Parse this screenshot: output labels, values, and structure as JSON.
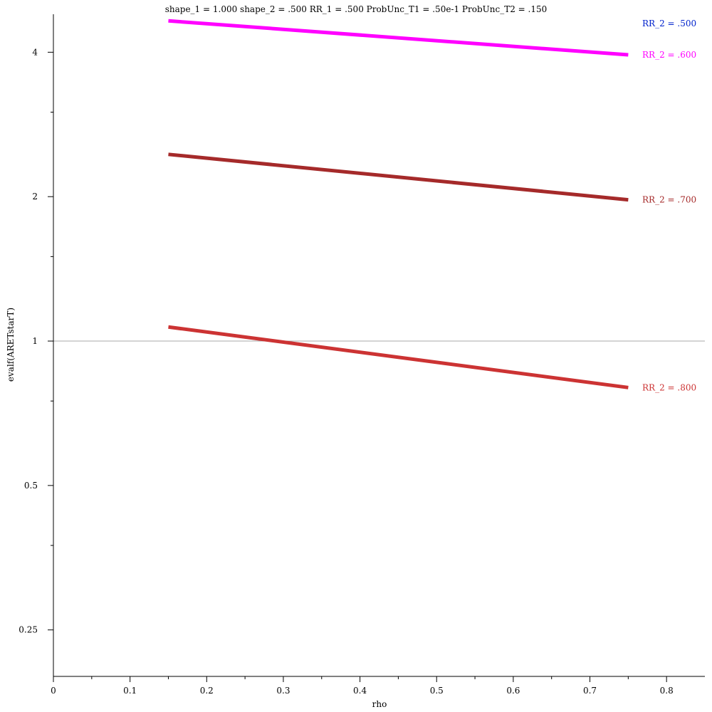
{
  "chart_data": {
    "type": "line",
    "title": "shape_1 = 1.000  shape_2 = .500  RR_1 = .500  ProbUnc_T1 = .50e-1  ProbUnc_T2 = .150",
    "xlabel": "rho",
    "ylabel": "evalf(ARETstarT)",
    "xlim": [
      0,
      0.85
    ],
    "ylim": [
      0.2,
      4.8
    ],
    "yscale": "log2",
    "grid": false,
    "reference_line_y": 1,
    "x_ticks": [
      "0",
      "0.1",
      "0.2",
      "0.3",
      "0.4",
      "0.5",
      "0.6",
      "0.7",
      "0.8"
    ],
    "x_tick_values": [
      0,
      0.1,
      0.2,
      0.3,
      0.4,
      0.5,
      0.6,
      0.7,
      0.8
    ],
    "y_ticks": [
      "0.25",
      "0.5",
      "1",
      "2",
      "4"
    ],
    "y_tick_values": [
      0.25,
      0.5,
      1,
      2,
      4
    ],
    "series": [
      {
        "name": "RR_2 = .500",
        "color": "#0022cc",
        "x": [],
        "y": []
      },
      {
        "name": "RR_2 = .600",
        "color": "#ff00ff",
        "x": [
          0.15,
          0.75
        ],
        "y": [
          4.65,
          3.95
        ]
      },
      {
        "name": "RR_2 = .700",
        "color": "#a52a2a",
        "x": [
          0.15,
          0.75
        ],
        "y": [
          2.45,
          1.97
        ]
      },
      {
        "name": "RR_2 = .800",
        "color": "#cc3333",
        "x": [
          0.15,
          0.75
        ],
        "y": [
          1.07,
          0.8
        ]
      }
    ]
  }
}
